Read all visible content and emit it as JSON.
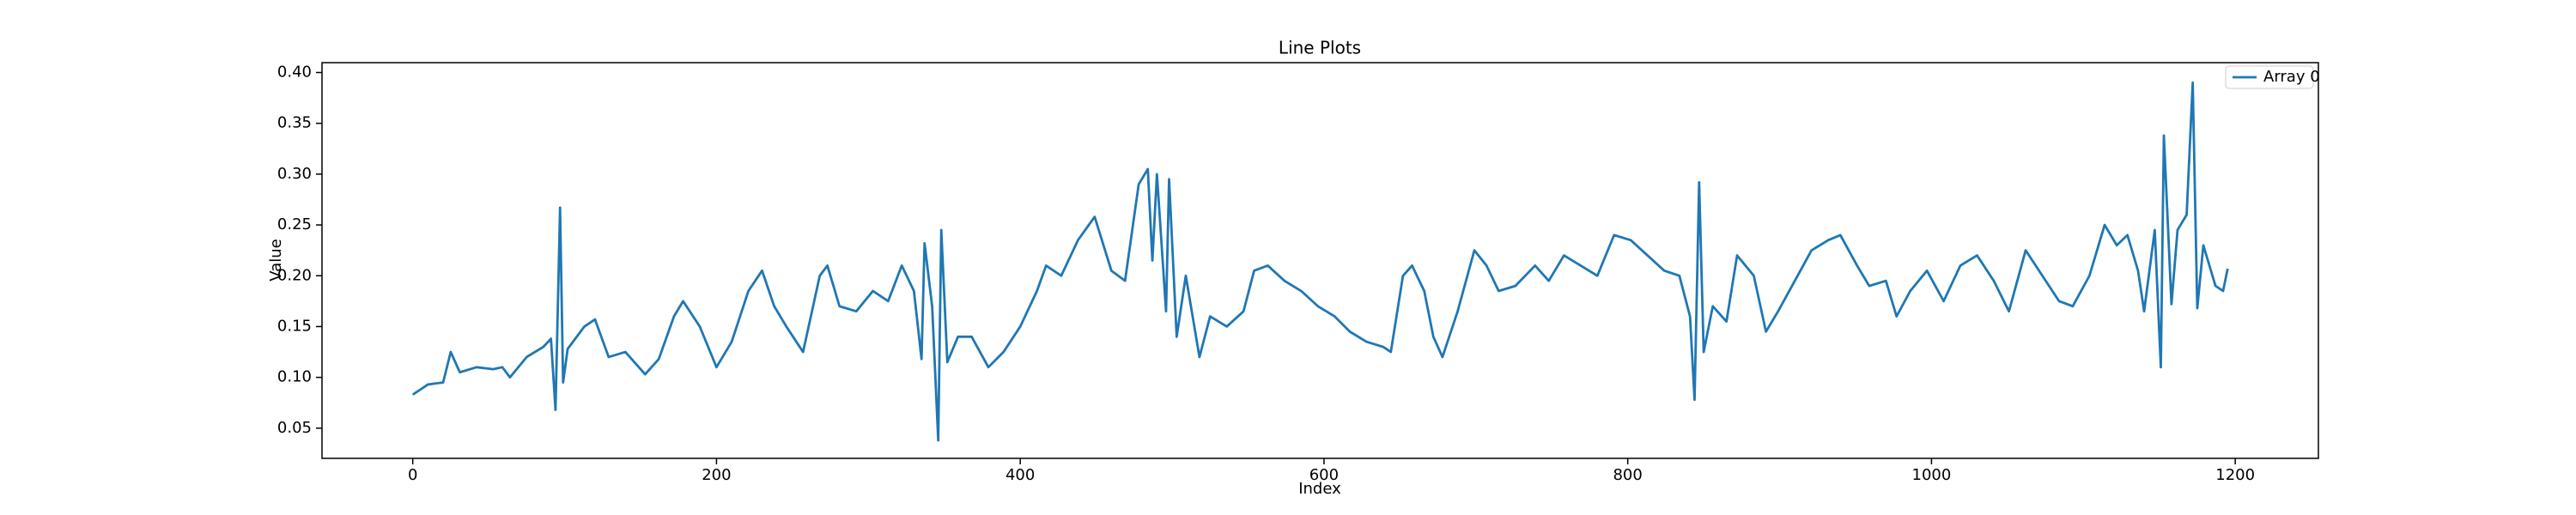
{
  "chart_data": {
    "type": "line",
    "title": "Line Plots",
    "x_label": "Index",
    "y_label": "Value",
    "x": [
      0,
      10,
      20,
      25,
      31,
      42,
      53,
      59,
      64,
      75,
      86,
      91,
      94,
      97,
      99,
      102,
      113,
      120,
      129,
      140,
      153,
      162,
      172,
      178,
      189,
      200,
      210,
      221,
      230,
      238,
      246,
      257,
      268,
      273,
      281,
      292,
      303,
      313,
      322,
      330,
      335,
      337,
      342,
      346,
      348,
      352,
      359,
      368,
      379,
      389,
      400,
      411,
      417,
      427,
      438,
      449,
      460,
      469,
      478,
      484,
      487,
      490,
      496,
      498,
      503,
      509,
      518,
      525,
      536,
      547,
      554,
      563,
      574,
      585,
      596,
      607,
      617,
      628,
      639,
      644,
      652,
      658,
      666,
      672,
      678,
      688,
      699,
      707,
      715,
      726,
      739,
      748,
      758,
      769,
      780,
      791,
      802,
      813,
      824,
      834,
      841,
      844,
      847,
      850,
      856,
      865,
      872,
      883,
      891,
      899,
      910,
      921,
      932,
      940,
      951,
      959,
      970,
      977,
      986,
      997,
      1008,
      1019,
      1030,
      1041,
      1051,
      1062,
      1073,
      1084,
      1093,
      1104,
      1114,
      1122,
      1129,
      1136,
      1140,
      1147,
      1151,
      1153,
      1158,
      1162,
      1168,
      1172,
      1175,
      1179,
      1187,
      1192,
      1195
    ],
    "series": [
      {
        "name": "Array 0",
        "color": "#1f77b4",
        "values": [
          0.083,
          0.093,
          0.095,
          0.125,
          0.105,
          0.11,
          0.108,
          0.11,
          0.1,
          0.12,
          0.13,
          0.138,
          0.068,
          0.267,
          0.095,
          0.128,
          0.15,
          0.157,
          0.12,
          0.125,
          0.103,
          0.118,
          0.16,
          0.175,
          0.15,
          0.11,
          0.135,
          0.185,
          0.205,
          0.17,
          0.15,
          0.125,
          0.2,
          0.21,
          0.17,
          0.165,
          0.185,
          0.175,
          0.21,
          0.185,
          0.118,
          0.232,
          0.17,
          0.038,
          0.245,
          0.115,
          0.14,
          0.14,
          0.11,
          0.125,
          0.15,
          0.185,
          0.21,
          0.2,
          0.235,
          0.258,
          0.205,
          0.195,
          0.29,
          0.305,
          0.215,
          0.3,
          0.165,
          0.295,
          0.14,
          0.2,
          0.12,
          0.16,
          0.15,
          0.165,
          0.205,
          0.21,
          0.195,
          0.185,
          0.17,
          0.16,
          0.145,
          0.135,
          0.13,
          0.125,
          0.2,
          0.21,
          0.185,
          0.14,
          0.12,
          0.165,
          0.225,
          0.21,
          0.185,
          0.19,
          0.21,
          0.195,
          0.22,
          0.21,
          0.2,
          0.24,
          0.235,
          0.22,
          0.205,
          0.2,
          0.16,
          0.078,
          0.292,
          0.125,
          0.17,
          0.155,
          0.22,
          0.2,
          0.145,
          0.165,
          0.195,
          0.225,
          0.235,
          0.24,
          0.21,
          0.19,
          0.195,
          0.16,
          0.185,
          0.205,
          0.175,
          0.21,
          0.22,
          0.195,
          0.165,
          0.225,
          0.2,
          0.175,
          0.17,
          0.2,
          0.25,
          0.23,
          0.24,
          0.205,
          0.165,
          0.245,
          0.11,
          0.338,
          0.172,
          0.245,
          0.26,
          0.39,
          0.168,
          0.23,
          0.19,
          0.185,
          0.207
        ]
      }
    ],
    "xlim": [
      -59.75,
      1254.75
    ],
    "xticks": [
      0,
      200,
      400,
      600,
      800,
      1000,
      1200
    ],
    "ylim": [
      0.0203,
      0.4097
    ],
    "yticks": [
      0.05,
      {
        "value": 0.1,
        "label": "0.10"
      },
      0.15,
      {
        "value": 0.2,
        "label": "0.20"
      },
      0.25,
      {
        "value": 0.3,
        "label": "0.30"
      },
      0.35,
      {
        "value": 0.4,
        "label": "0.40"
      }
    ],
    "legend": "upper right",
    "grid": false
  }
}
